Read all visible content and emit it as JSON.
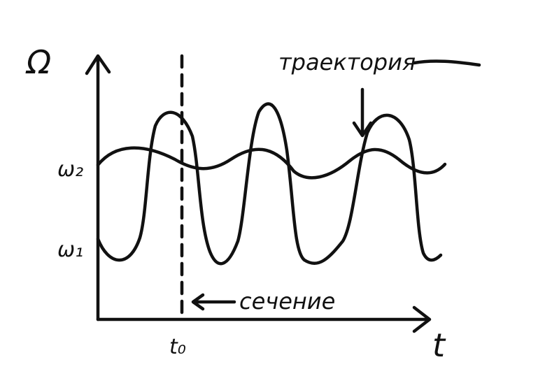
{
  "axes": {
    "y_label": "Ω",
    "x_label": "t"
  },
  "ticks": {
    "omega2": "ω₂",
    "omega1": "ω₁",
    "t0": "t₀"
  },
  "annotations": {
    "trajectory": "траектория",
    "section": "сечение"
  },
  "colors": {
    "ink": "#111111",
    "background": "#ffffff"
  }
}
